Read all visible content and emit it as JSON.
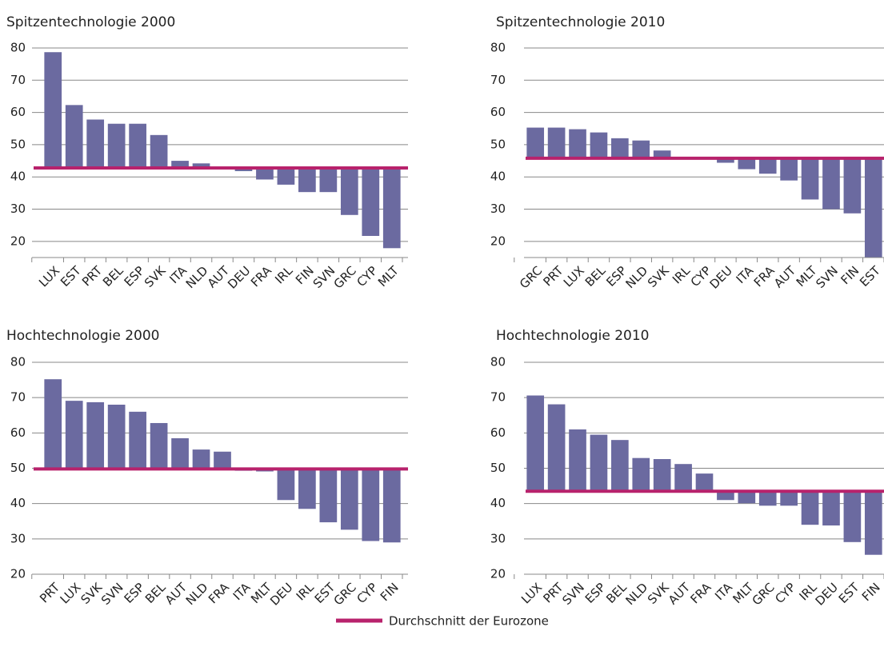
{
  "chart_data": [
    {
      "type": "bar",
      "title": "Spitzentechnologie 2000",
      "categories": [
        "LUX",
        "EST",
        "PRT",
        "BEL",
        "ESP",
        "SVK",
        "ITA",
        "NLD",
        "AUT",
        "DEU",
        "FRA",
        "IRL",
        "FIN",
        "SVN",
        "GRC",
        "CYP",
        "MLT"
      ],
      "values": [
        78.7,
        62.3,
        57.8,
        56.5,
        56.5,
        53,
        45,
        44.2,
        42.5,
        41.8,
        39.2,
        37.6,
        35.3,
        35.3,
        28.2,
        21.7,
        17.9
      ],
      "reference": 42.8,
      "color": "#6b6aa0",
      "ylim": [
        15,
        80
      ],
      "yticks": [
        20,
        30,
        40,
        50,
        60,
        70,
        80
      ],
      "grid": true
    },
    {
      "type": "bar",
      "title": "Spitzentechnologie 2010",
      "categories": [
        "GRC",
        "PRT",
        "LUX",
        "BEL",
        "ESP",
        "NLD",
        "SVK",
        "IRL",
        "CYP",
        "DEU",
        "ITA",
        "FRA",
        "AUT",
        "MLT",
        "SVN",
        "FIN",
        "EST"
      ],
      "values": [
        55.3,
        55.3,
        54.8,
        53.8,
        52,
        51.3,
        48.2,
        46.2,
        45.5,
        44.4,
        42.4,
        41,
        38.9,
        33,
        30,
        28.7,
        15.1
      ],
      "reference": 45.8,
      "color": "#6b6aa0",
      "ylim": [
        15,
        80
      ],
      "yticks": [
        20,
        30,
        40,
        50,
        60,
        70,
        80
      ],
      "grid": true
    },
    {
      "type": "bar",
      "title": "Hochtechnologie 2000",
      "categories": [
        "PRT",
        "LUX",
        "SVK",
        "SVN",
        "ESP",
        "BEL",
        "AUT",
        "NLD",
        "FRA",
        "ITA",
        "MLT",
        "DEU",
        "IRL",
        "EST",
        "GRC",
        "CYP",
        "FIN"
      ],
      "values": [
        75.2,
        69.1,
        68.7,
        68,
        66,
        62.8,
        58.5,
        55.3,
        54.7,
        49.3,
        49.1,
        41,
        38.5,
        34.7,
        32.6,
        29.4,
        29
      ],
      "reference": 49.8,
      "color": "#6b6aa0",
      "ylim": [
        20,
        80
      ],
      "yticks": [
        20,
        30,
        40,
        50,
        60,
        70,
        80
      ],
      "grid": true
    },
    {
      "type": "bar",
      "title": "Hochtechnologie 2010",
      "categories": [
        "LUX",
        "PRT",
        "SVN",
        "ESP",
        "BEL",
        "NLD",
        "SVK",
        "AUT",
        "FRA",
        "ITA",
        "MLT",
        "GRC",
        "CYP",
        "IRL",
        "DEU",
        "EST",
        "FIN"
      ],
      "values": [
        70.6,
        68.1,
        61,
        59.5,
        58,
        52.9,
        52.6,
        51.2,
        48.5,
        41,
        40.1,
        39.4,
        39.4,
        34,
        33.8,
        29.1,
        25.5
      ],
      "reference": 43.5,
      "color": "#6b6aa0",
      "ylim": [
        20,
        80
      ],
      "yticks": [
        20,
        30,
        40,
        50,
        60,
        70,
        80
      ],
      "grid": true
    }
  ],
  "legend": {
    "label": "Durchschnitt der Eurozone",
    "color": "#b8226c"
  }
}
